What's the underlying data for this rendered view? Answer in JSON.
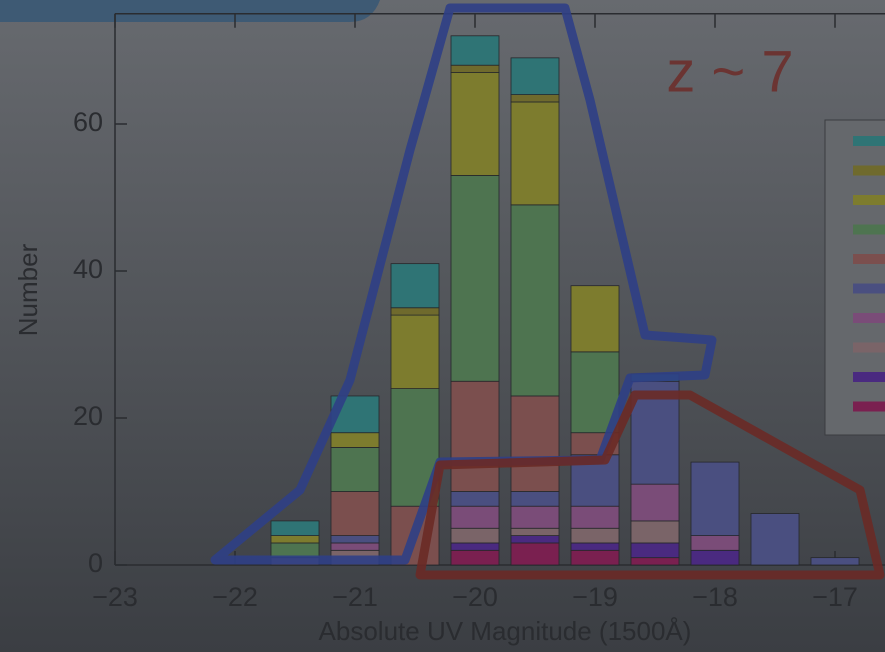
{
  "chart_data": {
    "type": "histogram",
    "annotation": "z ~ 7",
    "x_label": "Absolute UV Magnitude (1500Å)",
    "y_label": "Number",
    "bins": [
      -21.75,
      -21.25,
      -20.75,
      -20.25,
      -19.75,
      -19.25,
      -18.75,
      -18.25,
      -17.75,
      -17.25,
      -16.75
    ],
    "series": [
      {
        "color": "#7a2050",
        "values": [
          0,
          0,
          0,
          2,
          3,
          2,
          1,
          0,
          0,
          0
        ]
      },
      {
        "color": "#4a2a80",
        "values": [
          0,
          0,
          0,
          1,
          1,
          1,
          2,
          2,
          0,
          0
        ]
      },
      {
        "color": "#7a6468",
        "values": [
          1,
          2,
          0,
          2,
          1,
          2,
          3,
          0,
          0,
          0
        ]
      },
      {
        "color": "#7a4c78",
        "values": [
          0,
          1,
          0,
          3,
          3,
          3,
          5,
          2,
          0,
          0
        ]
      },
      {
        "color": "#4a4f80",
        "values": [
          0,
          1,
          0,
          2,
          2,
          7,
          14,
          10,
          7,
          1
        ]
      },
      {
        "color": "#7b4f4e",
        "values": [
          0,
          6,
          8,
          15,
          13,
          3,
          0,
          0,
          0,
          0
        ]
      },
      {
        "color": "#4e7450",
        "values": [
          2,
          6,
          16,
          28,
          26,
          11,
          0,
          0,
          0,
          0
        ]
      },
      {
        "color": "#7d7c2e",
        "values": [
          1,
          2,
          10,
          14,
          14,
          9,
          0,
          0,
          0,
          0
        ]
      },
      {
        "color": "#6f6a2d",
        "values": [
          0,
          0,
          1,
          1,
          1,
          0,
          0,
          0,
          0,
          0
        ]
      },
      {
        "color": "#2f7475",
        "values": [
          2,
          5,
          6,
          4,
          5,
          0,
          1,
          0,
          0,
          0
        ]
      }
    ],
    "stacked": true,
    "xlim": [
      -23,
      -16.6
    ],
    "ylim": [
      0,
      75
    ],
    "xticks": [
      {
        "value": -23,
        "label": "−23"
      },
      {
        "value": -22,
        "label": "−22"
      },
      {
        "value": -21,
        "label": "−21"
      },
      {
        "value": -20,
        "label": "−20"
      },
      {
        "value": -19,
        "label": "−19"
      },
      {
        "value": -18,
        "label": "−18"
      },
      {
        "value": -17,
        "label": "−17"
      }
    ],
    "yticks": [
      0,
      20,
      40,
      60
    ]
  }
}
